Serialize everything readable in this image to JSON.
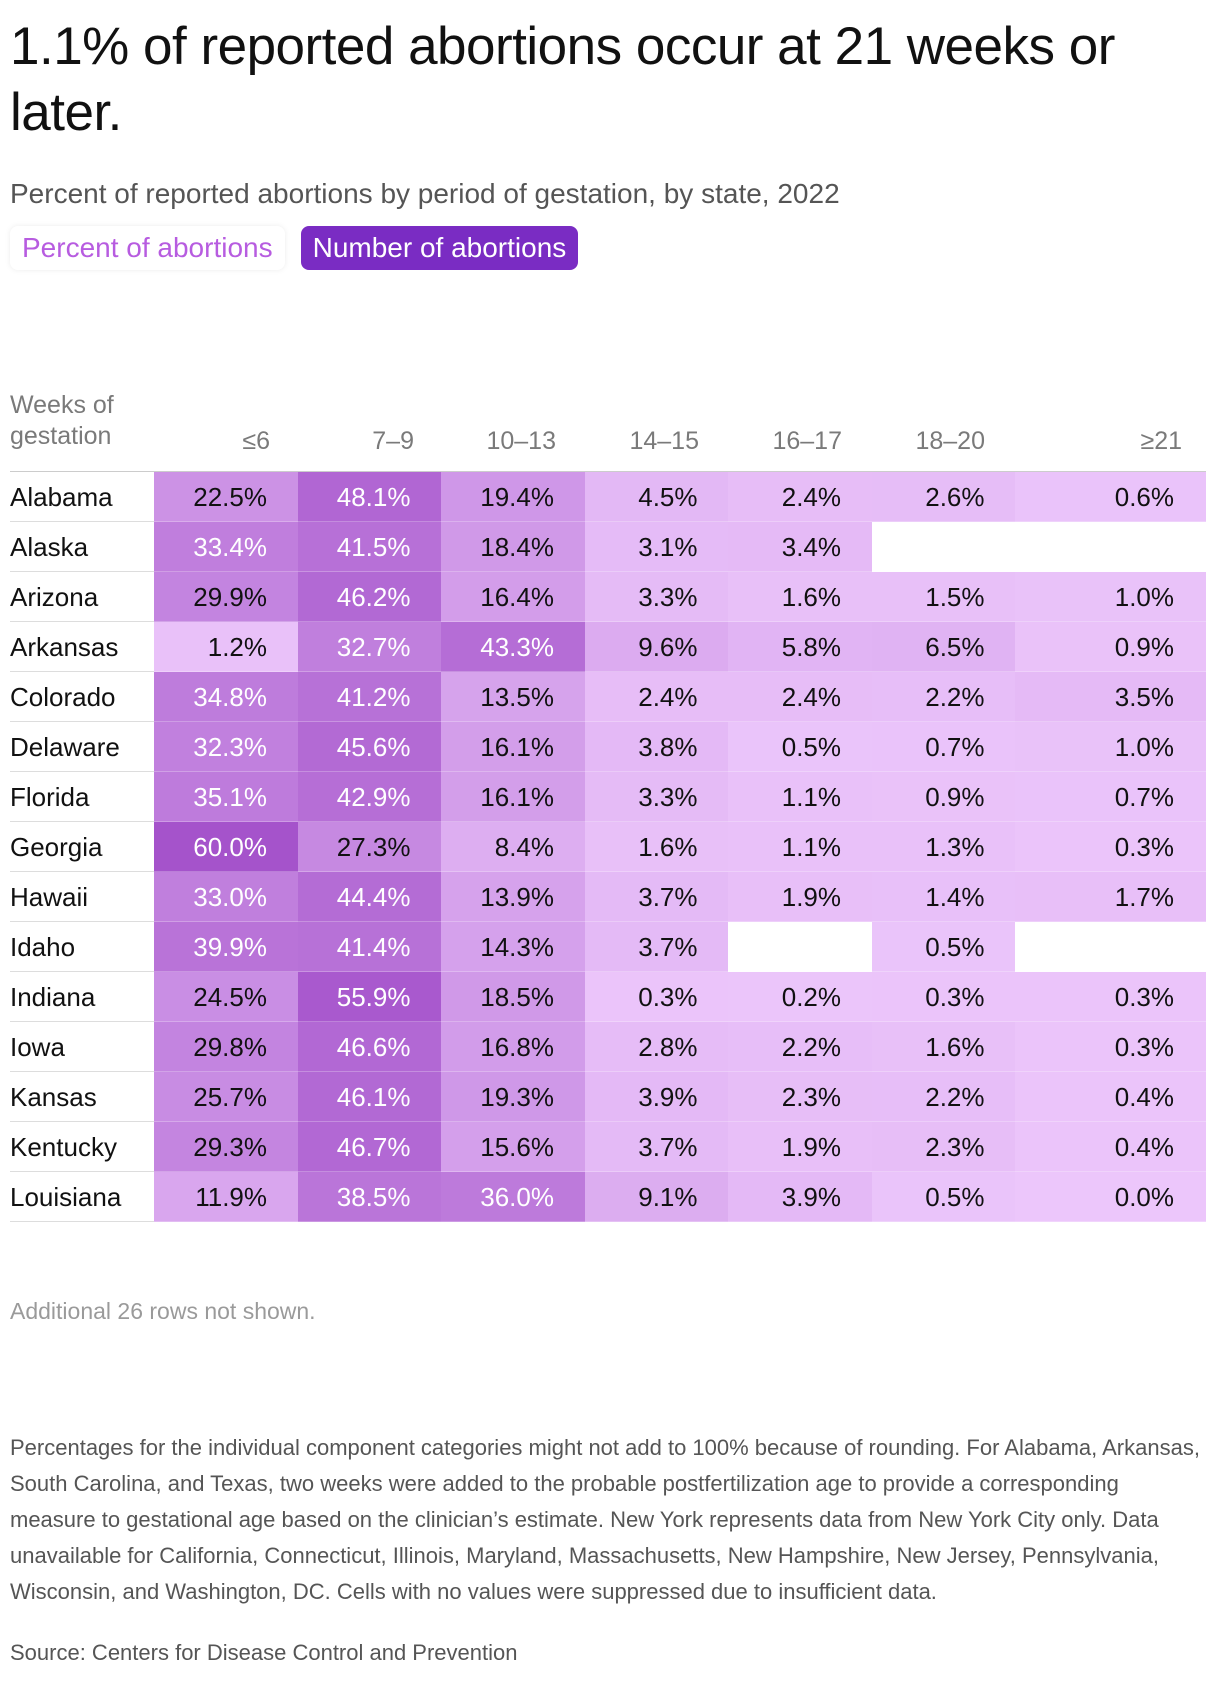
{
  "header": {
    "title": "1.1% of reported abortions occur at 21 weeks or later.",
    "subtitle": "Percent of reported abortions by period of gestation, by state, 2022"
  },
  "toggles": [
    {
      "label": "Percent of abortions",
      "active": false
    },
    {
      "label": "Number of abortions",
      "active": true
    }
  ],
  "colors": {
    "low": "#ecc6fb",
    "high": "#a553cb",
    "text_dark": "#111111",
    "text_light": "#ffffff"
  },
  "chart_data": {
    "type": "table",
    "row_header": "Weeks of gestation",
    "columns": [
      "≤6",
      "7–9",
      "10–13",
      "14–15",
      "16–17",
      "18–20",
      "≥21"
    ],
    "rows": [
      {
        "state": "Alabama",
        "values": [
          22.5,
          48.1,
          19.4,
          4.5,
          2.4,
          2.6,
          0.6
        ]
      },
      {
        "state": "Alaska",
        "values": [
          33.4,
          41.5,
          18.4,
          3.1,
          3.4,
          null,
          null
        ]
      },
      {
        "state": "Arizona",
        "values": [
          29.9,
          46.2,
          16.4,
          3.3,
          1.6,
          1.5,
          1.0
        ]
      },
      {
        "state": "Arkansas",
        "values": [
          1.2,
          32.7,
          43.3,
          9.6,
          5.8,
          6.5,
          0.9
        ]
      },
      {
        "state": "Colorado",
        "values": [
          34.8,
          41.2,
          13.5,
          2.4,
          2.4,
          2.2,
          3.5
        ]
      },
      {
        "state": "Delaware",
        "values": [
          32.3,
          45.6,
          16.1,
          3.8,
          0.5,
          0.7,
          1.0
        ]
      },
      {
        "state": "Florida",
        "values": [
          35.1,
          42.9,
          16.1,
          3.3,
          1.1,
          0.9,
          0.7
        ]
      },
      {
        "state": "Georgia",
        "values": [
          60.0,
          27.3,
          8.4,
          1.6,
          1.1,
          1.3,
          0.3
        ]
      },
      {
        "state": "Hawaii",
        "values": [
          33.0,
          44.4,
          13.9,
          3.7,
          1.9,
          1.4,
          1.7
        ]
      },
      {
        "state": "Idaho",
        "values": [
          39.9,
          41.4,
          14.3,
          3.7,
          null,
          0.5,
          null
        ]
      },
      {
        "state": "Indiana",
        "values": [
          24.5,
          55.9,
          18.5,
          0.3,
          0.2,
          0.3,
          0.3
        ]
      },
      {
        "state": "Iowa",
        "values": [
          29.8,
          46.6,
          16.8,
          2.8,
          2.2,
          1.6,
          0.3
        ]
      },
      {
        "state": "Kansas",
        "values": [
          25.7,
          46.1,
          19.3,
          3.9,
          2.3,
          2.2,
          0.4
        ]
      },
      {
        "state": "Kentucky",
        "values": [
          29.3,
          46.7,
          15.6,
          3.7,
          1.9,
          2.3,
          0.4
        ]
      },
      {
        "state": "Louisiana",
        "values": [
          11.9,
          38.5,
          36.0,
          9.1,
          3.9,
          0.5,
          0.0
        ]
      }
    ],
    "value_suffix": "%",
    "white_text_threshold": 32
  },
  "footer": {
    "rows_not_shown": "Additional 26 rows not shown.",
    "notes": "Percentages for the individual component categories might not add to 100% because of rounding. For Alabama, Arkansas, South Carolina, and Texas, two weeks were added to the probable postfertilization age to provide a corresponding measure to gestational age based on the clinician’s estimate. New York represents data from New York City only. Data unavailable for California, Connecticut, Illinois, Maryland, Massachusetts, New Hampshire, New Jersey, Pennsylvania, Wisconsin, and Washington, DC. Cells with no values were suppressed due to insufficient data.",
    "source": "Source: Centers for Disease Control and Prevention"
  }
}
